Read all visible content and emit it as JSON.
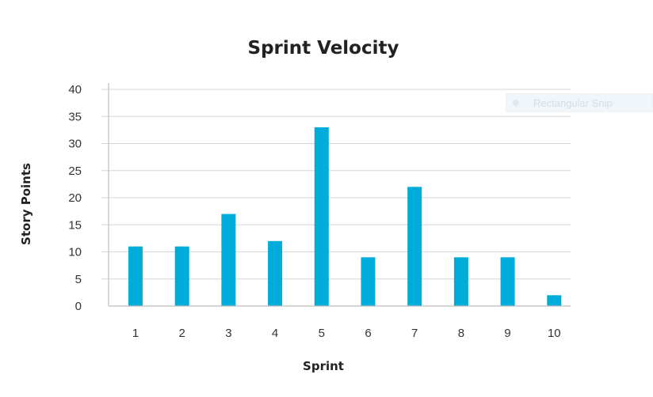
{
  "chart_data": {
    "type": "bar",
    "title": "Sprint Velocity",
    "xlabel": "Sprint",
    "ylabel": "Story Points",
    "categories": [
      "1",
      "2",
      "3",
      "4",
      "5",
      "6",
      "7",
      "8",
      "9",
      "10"
    ],
    "values": [
      11,
      11,
      17,
      12,
      33,
      9,
      22,
      9,
      9,
      2
    ],
    "ylim": [
      0,
      40
    ],
    "yticks": [
      "0",
      "5",
      "10",
      "15",
      "20",
      "25",
      "30",
      "35",
      "40"
    ],
    "bar_color": "#00acd9",
    "grid": true,
    "legend": "none"
  },
  "overlay": {
    "label": "Rectangular Snip",
    "icon": "snip-icon"
  }
}
